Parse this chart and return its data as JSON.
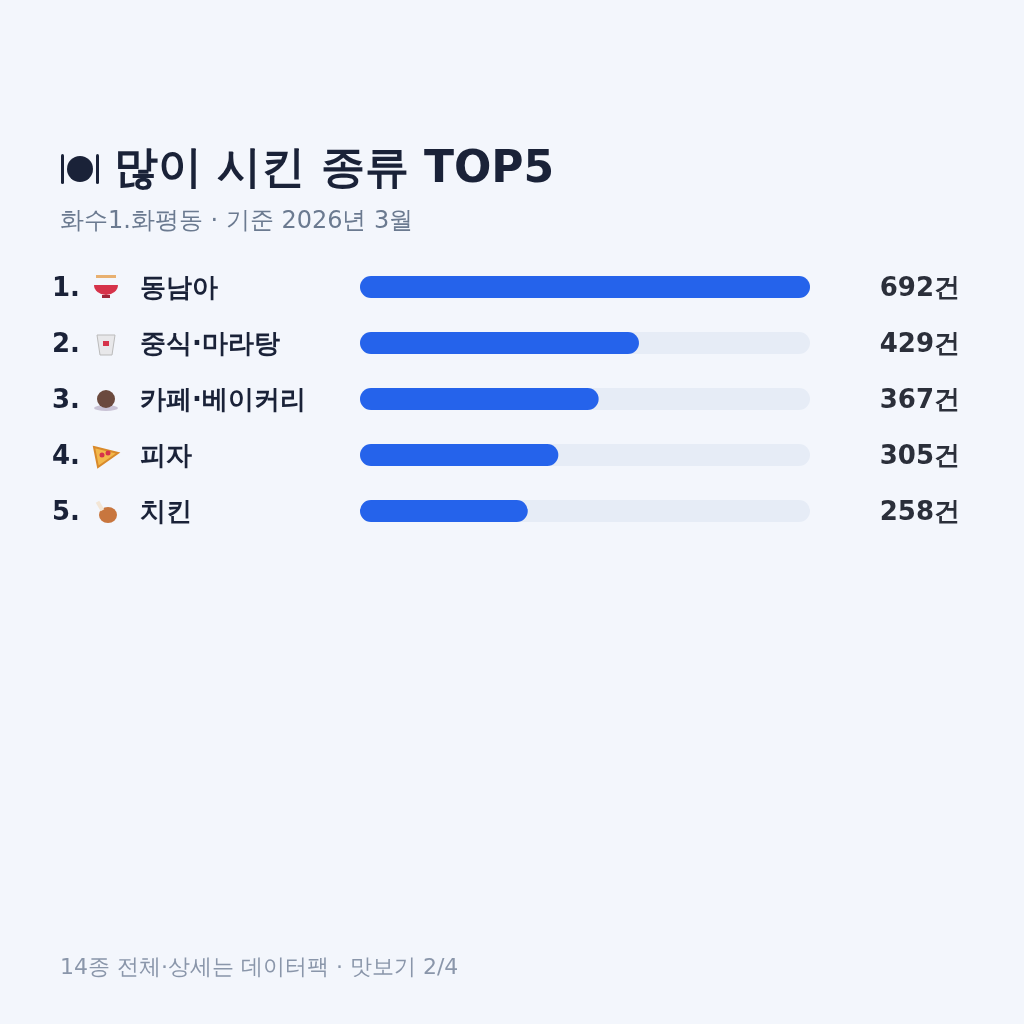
{
  "chart_data": {
    "type": "bar",
    "orientation": "horizontal",
    "title": "많이 시킨 종류 TOP5",
    "subtitle": "화수1.화평동 · 기준 2026년 3월",
    "categories": [
      "1. 동남아",
      "2. 중식·마라탕",
      "3. 카페·베이커리",
      "4. 피자",
      "5. 치킨"
    ],
    "values": [
      692,
      429,
      367,
      305,
      258
    ],
    "color": "#2563eb",
    "value_labels": [
      "692건",
      "429건",
      "367건",
      "305건",
      "258건"
    ],
    "annotations": [
      "14종 전체·상세는 데이터팩 · 맛보기 2/4"
    ]
  }
}
